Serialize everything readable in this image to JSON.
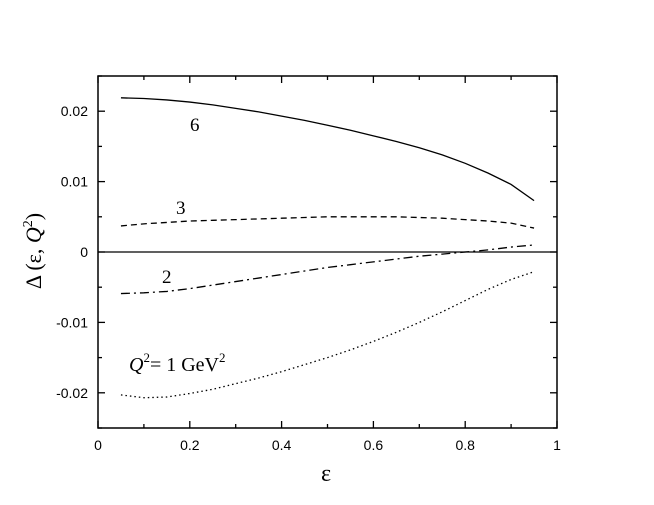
{
  "chart_data": {
    "type": "line",
    "xlabel": "ε",
    "ylabel": {
      "prefix": "Δ (ε, ",
      "var": "Q",
      "sup": "2",
      "suffix": ")"
    },
    "xlim": [
      0,
      1
    ],
    "ylim": [
      -0.025,
      0.025
    ],
    "xticks": [
      0,
      0.2,
      0.4,
      0.6,
      0.8,
      1
    ],
    "xtick_labels": [
      "0",
      "0.2",
      "0.4",
      "0.6",
      "0.8",
      "1"
    ],
    "yticks": [
      -0.02,
      -0.01,
      0,
      0.01,
      0.02
    ],
    "ytick_labels": [
      "-0.02",
      "-0.01",
      "0",
      "0.01",
      "0.02"
    ],
    "zero_line": true,
    "grid": false,
    "annotation": {
      "var": "Q",
      "sup": "2",
      "text": "= 1 GeV",
      "unit_sup": "2"
    },
    "series": [
      {
        "name": "6",
        "style": "solid",
        "x": [
          0.05,
          0.1,
          0.15,
          0.2,
          0.25,
          0.3,
          0.35,
          0.4,
          0.45,
          0.5,
          0.55,
          0.6,
          0.65,
          0.7,
          0.75,
          0.8,
          0.85,
          0.9,
          0.95
        ],
        "y": [
          0.0219,
          0.0218,
          0.0216,
          0.0213,
          0.0209,
          0.0204,
          0.0199,
          0.0193,
          0.0187,
          0.018,
          0.0173,
          0.0165,
          0.0157,
          0.0148,
          0.0138,
          0.0126,
          0.0112,
          0.0096,
          0.0073
        ]
      },
      {
        "name": "3",
        "style": "dashed",
        "x": [
          0.05,
          0.1,
          0.15,
          0.2,
          0.25,
          0.3,
          0.35,
          0.4,
          0.45,
          0.5,
          0.55,
          0.6,
          0.65,
          0.7,
          0.75,
          0.8,
          0.85,
          0.9,
          0.95
        ],
        "y": [
          0.0037,
          0.004,
          0.0042,
          0.0044,
          0.0045,
          0.0046,
          0.0047,
          0.0048,
          0.0049,
          0.005,
          0.005,
          0.005,
          0.005,
          0.0049,
          0.0048,
          0.0046,
          0.0044,
          0.0041,
          0.0034
        ]
      },
      {
        "name": "2",
        "style": "dashdot",
        "x": [
          0.05,
          0.1,
          0.15,
          0.2,
          0.25,
          0.3,
          0.35,
          0.4,
          0.45,
          0.5,
          0.55,
          0.6,
          0.65,
          0.7,
          0.75,
          0.8,
          0.85,
          0.9,
          0.95
        ],
        "y": [
          -0.0059,
          -0.0058,
          -0.0056,
          -0.0052,
          -0.0047,
          -0.0042,
          -0.0037,
          -0.0032,
          -0.0027,
          -0.0022,
          -0.0018,
          -0.0014,
          -0.001,
          -0.0006,
          -0.0003,
          0,
          0.0003,
          0.0007,
          0.001
        ]
      },
      {
        "name": "1",
        "style": "dotted",
        "x": [
          0.05,
          0.1,
          0.15,
          0.2,
          0.25,
          0.3,
          0.35,
          0.4,
          0.45,
          0.5,
          0.55,
          0.6,
          0.65,
          0.7,
          0.75,
          0.8,
          0.85,
          0.9,
          0.95
        ],
        "y": [
          -0.0203,
          -0.0207,
          -0.0206,
          -0.0201,
          -0.0195,
          -0.0187,
          -0.0179,
          -0.017,
          -0.016,
          -0.015,
          -0.0139,
          -0.0127,
          -0.0114,
          -0.01,
          -0.0085,
          -0.0069,
          -0.0053,
          -0.0039,
          -0.0028
        ]
      }
    ],
    "curve_labels": [
      "6",
      "3",
      "2"
    ]
  }
}
